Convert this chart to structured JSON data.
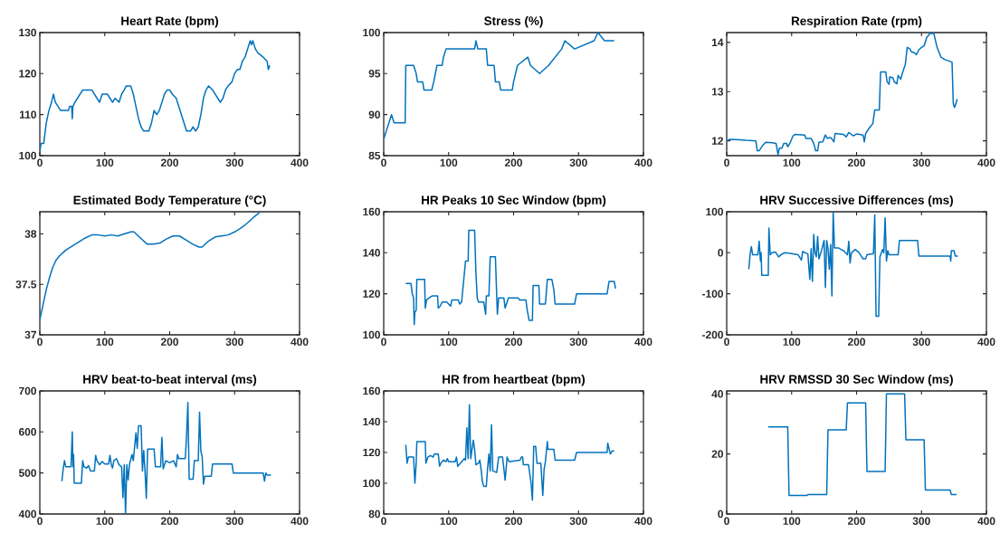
{
  "chart_data": [
    {
      "type": "line",
      "title": "Heart Rate (bpm)",
      "color": "#0072bd",
      "xlim": [
        0,
        400
      ],
      "xticks": [
        0,
        100,
        200,
        300,
        400
      ],
      "ylim": [
        100,
        130
      ],
      "yticks": [
        100,
        110,
        120,
        130
      ],
      "x": [
        0,
        2,
        6,
        10,
        14,
        18,
        21,
        24,
        28,
        32,
        44,
        46,
        49,
        50,
        51,
        54,
        58,
        62,
        66,
        80,
        84,
        88,
        92,
        96,
        104,
        108,
        112,
        116,
        122,
        126,
        130,
        133,
        140,
        144,
        148,
        152,
        156,
        160,
        168,
        172,
        176,
        180,
        184,
        188,
        192,
        196,
        200,
        204,
        210,
        214,
        218,
        222,
        226,
        232,
        236,
        240,
        244,
        248,
        252,
        256,
        260,
        266,
        270,
        274,
        278,
        282,
        286,
        290,
        296,
        300,
        304,
        308,
        312,
        316,
        320,
        324,
        326,
        328,
        332,
        336,
        344,
        350,
        352,
        354
      ],
      "values": [
        101,
        103,
        103,
        108,
        111,
        113,
        115,
        113,
        112,
        111,
        111,
        112,
        112,
        109,
        112,
        113,
        114,
        115,
        116,
        116,
        115,
        114,
        113,
        115,
        115,
        114,
        113,
        114,
        113,
        115,
        116,
        117,
        117,
        115,
        112,
        109,
        107,
        106,
        106,
        108,
        111,
        110,
        111,
        113,
        115,
        116,
        116,
        115,
        114,
        112,
        110,
        108,
        106,
        106,
        107,
        106,
        107,
        110,
        114,
        116,
        117,
        116,
        115,
        114,
        113,
        114,
        116,
        117,
        118,
        120,
        121,
        121,
        123,
        124,
        126,
        128,
        127,
        128,
        126,
        125,
        124,
        123,
        121,
        122
      ]
    },
    {
      "type": "line",
      "title": "Stress (%)",
      "color": "#0072bd",
      "xlim": [
        0,
        400
      ],
      "xticks": [
        0,
        100,
        200,
        300,
        400
      ],
      "ylim": [
        85,
        100
      ],
      "yticks": [
        85,
        90,
        95,
        100
      ],
      "x": [
        0,
        4,
        8,
        12,
        16,
        33,
        34,
        46,
        50,
        52,
        60,
        62,
        74,
        77,
        82,
        90,
        92,
        96,
        140,
        142,
        145,
        158,
        160,
        170,
        172,
        178,
        180,
        198,
        200,
        203,
        206,
        222,
        226,
        240,
        254,
        264,
        274,
        279,
        294,
        324,
        330,
        340,
        355
      ],
      "values": [
        87,
        88,
        89,
        90,
        89,
        89,
        96,
        96,
        95,
        94,
        94,
        93,
        93,
        94,
        96,
        96,
        97,
        98,
        98,
        99,
        98,
        98,
        96,
        96,
        94,
        94,
        93,
        93,
        94,
        95,
        96,
        97,
        96,
        95,
        96,
        97,
        98,
        99,
        98,
        99,
        100,
        99,
        99
      ]
    },
    {
      "type": "line",
      "title": "Respiration Rate (rpm)",
      "color": "#0072bd",
      "xlim": [
        0,
        400
      ],
      "xticks": [
        0,
        100,
        200,
        300,
        400
      ],
      "ylim": [
        11.7,
        14.2
      ],
      "yticks": [
        12,
        13,
        14
      ],
      "x": [
        0,
        5,
        20,
        30,
        45,
        47,
        50,
        55,
        60,
        70,
        76,
        79,
        81,
        85,
        88,
        92,
        94,
        98,
        102,
        105,
        120,
        122,
        130,
        134,
        137,
        140,
        142,
        148,
        152,
        155,
        160,
        163,
        165,
        167,
        180,
        184,
        188,
        195,
        200,
        210,
        212,
        214,
        220,
        225,
        228,
        235,
        237,
        245,
        247,
        250,
        251,
        256,
        258,
        262,
        264,
        268,
        270,
        275,
        278,
        282,
        285,
        288,
        292,
        296,
        300,
        304,
        308,
        313,
        319,
        324,
        330,
        336,
        347,
        349,
        351,
        355
      ],
      "values": [
        12,
        12.03,
        12.02,
        12.01,
        12,
        11.8,
        11.8,
        11.9,
        11.97,
        11.96,
        11.95,
        11.72,
        11.85,
        11.85,
        11.95,
        11.95,
        11.88,
        11.97,
        12.1,
        12.13,
        12.12,
        12.05,
        12.05,
        11.95,
        11.8,
        11.8,
        11.97,
        11.98,
        12.12,
        12.05,
        12.07,
        12.02,
        11.98,
        12.15,
        12.13,
        12.08,
        12.17,
        12.1,
        12.14,
        12.12,
        11.98,
        12.15,
        12.27,
        12.35,
        12.63,
        12.63,
        13.4,
        13.4,
        13.2,
        13.15,
        13.3,
        13.28,
        13.2,
        13.16,
        13.33,
        13.25,
        13.35,
        13.55,
        13.9,
        13.87,
        13.8,
        13.8,
        13.75,
        13.85,
        13.9,
        13.93,
        14.1,
        14.18,
        14.18,
        13.9,
        13.7,
        13.65,
        13.6,
        12.75,
        12.68,
        12.85
      ]
    },
    {
      "type": "line",
      "title": "Estimated Body Temperature (°C)",
      "color": "#0072bd",
      "xlim": [
        0,
        400
      ],
      "xticks": [
        0,
        100,
        200,
        300,
        400
      ],
      "ylim": [
        37,
        38.22
      ],
      "yticks": [
        37,
        37.5,
        38
      ],
      "x": [
        0,
        5,
        10,
        15,
        20,
        25,
        30,
        40,
        50,
        60,
        70,
        80,
        90,
        100,
        110,
        120,
        130,
        140,
        145,
        155,
        165,
        175,
        185,
        195,
        205,
        215,
        225,
        235,
        245,
        250,
        260,
        270,
        280,
        290,
        300,
        310,
        320,
        330,
        338
      ],
      "values": [
        37.15,
        37.3,
        37.45,
        37.57,
        37.67,
        37.74,
        37.78,
        37.84,
        37.88,
        37.92,
        37.96,
        37.99,
        37.99,
        37.98,
        37.99,
        37.98,
        38,
        38.02,
        38.02,
        37.96,
        37.9,
        37.9,
        37.91,
        37.95,
        37.98,
        37.98,
        37.94,
        37.9,
        37.87,
        37.87,
        37.93,
        37.97,
        37.98,
        37.99,
        38.02,
        38.06,
        38.11,
        38.17,
        38.21
      ]
    },
    {
      "type": "line",
      "title": "HR Peaks 10 Sec Window (bpm)",
      "color": "#0072bd",
      "xlim": [
        0,
        400
      ],
      "xticks": [
        0,
        100,
        200,
        300,
        400
      ],
      "ylim": [
        100,
        160
      ],
      "yticks": [
        100,
        120,
        140,
        160
      ],
      "x": [
        34,
        42,
        44,
        46,
        47,
        48,
        50,
        51,
        63,
        64,
        66,
        70,
        75,
        83,
        84,
        87,
        90,
        97,
        100,
        103,
        105,
        115,
        117,
        120,
        126,
        130,
        131,
        140,
        142,
        144,
        146,
        154,
        157,
        158,
        162,
        164,
        172,
        175,
        177,
        185,
        187,
        192,
        207,
        209,
        219,
        221,
        224,
        229,
        230,
        239,
        240,
        249,
        252,
        259,
        262,
        264,
        294,
        297,
        344,
        347,
        355,
        357
      ],
      "values": [
        125,
        125,
        120,
        118,
        105,
        111,
        112,
        127,
        127,
        113,
        117,
        118,
        119,
        119,
        113,
        114,
        116,
        116,
        115,
        114,
        117,
        117,
        115,
        116,
        136,
        136,
        151,
        151,
        130,
        118,
        116,
        116,
        110,
        119,
        119,
        138,
        138,
        110,
        118,
        118,
        113,
        118,
        118,
        117,
        117,
        112,
        107,
        107,
        124,
        124,
        115,
        115,
        127,
        127,
        122,
        115,
        115,
        120,
        120,
        126,
        126,
        122.5
      ]
    },
    {
      "type": "line",
      "title": "HRV Successive Differences (ms)",
      "color": "#0072bd",
      "xlim": [
        0,
        400
      ],
      "xticks": [
        0,
        100,
        200,
        300,
        400
      ],
      "ylim": [
        -200,
        100
      ],
      "yticks": [
        -200,
        -100,
        0,
        100
      ],
      "x": [
        34,
        36,
        38,
        40,
        48,
        50,
        52,
        53,
        54,
        64,
        65,
        67,
        70,
        75,
        80,
        85,
        90,
        100,
        110,
        115,
        117,
        125,
        128,
        130,
        132,
        134,
        136,
        138,
        140,
        142,
        146,
        150,
        152,
        154,
        156,
        158,
        160,
        162,
        164,
        166,
        172,
        176,
        180,
        186,
        188,
        190,
        192,
        198,
        204,
        210,
        214,
        216,
        226,
        228,
        230,
        234,
        236,
        240,
        242,
        244,
        246,
        248,
        250,
        264,
        266,
        294,
        296,
        344,
        345,
        346,
        350,
        352,
        356
      ],
      "values": [
        -40,
        -5,
        15,
        -5,
        -5,
        28,
        -20,
        0,
        -55,
        -55,
        60,
        -5,
        0,
        2,
        -10,
        -3,
        0,
        -2,
        -5,
        -18,
        3,
        -3,
        -65,
        10,
        -70,
        45,
        0,
        -10,
        40,
        -15,
        5,
        30,
        -85,
        30,
        10,
        -40,
        20,
        -105,
        100,
        12,
        12,
        8,
        5,
        -5,
        28,
        -25,
        0,
        8,
        0,
        -15,
        -15,
        -5,
        -2,
        92,
        -155,
        -155,
        -10,
        8,
        0,
        85,
        -20,
        5,
        -5,
        -5,
        30,
        30,
        -8,
        -8,
        -20,
        5,
        5,
        -8,
        -8
      ]
    },
    {
      "type": "line",
      "title": "HRV beat-to-beat interval (ms)",
      "color": "#0072bd",
      "xlim": [
        0,
        400
      ],
      "xticks": [
        0,
        100,
        200,
        300,
        400
      ],
      "ylim": [
        400,
        700
      ],
      "yticks": [
        400,
        500,
        600,
        700
      ],
      "x": [
        34,
        36,
        38,
        40,
        48,
        50,
        51,
        52,
        53,
        64,
        66,
        68,
        72,
        75,
        78,
        84,
        86,
        88,
        92,
        96,
        100,
        106,
        108,
        110,
        112,
        114,
        118,
        122,
        126,
        128,
        130,
        132,
        134,
        136,
        138,
        142,
        144,
        148,
        150,
        152,
        156,
        158,
        160,
        162,
        164,
        166,
        176,
        178,
        186,
        188,
        190,
        194,
        200,
        206,
        210,
        212,
        214,
        224,
        226,
        228,
        230,
        236,
        238,
        244,
        246,
        248,
        250,
        252,
        254,
        264,
        266,
        296,
        298,
        344,
        346,
        348,
        350,
        356
      ],
      "values": [
        480,
        510,
        530,
        515,
        515,
        600,
        515,
        545,
        475,
        475,
        530,
        515,
        512,
        518,
        505,
        505,
        543,
        530,
        520,
        528,
        522,
        522,
        543,
        520,
        512,
        530,
        535,
        520,
        515,
        440,
        520,
        400,
        520,
        483,
        520,
        545,
        530,
        598,
        560,
        615,
        615,
        505,
        555,
        505,
        438,
        558,
        558,
        515,
        515,
        587,
        510,
        530,
        525,
        530,
        515,
        545,
        535,
        535,
        590,
        672,
        485,
        485,
        530,
        530,
        648,
        553,
        540,
        473,
        492,
        492,
        522,
        522,
        500,
        500,
        480,
        500,
        495,
        495
      ]
    },
    {
      "type": "line",
      "title": "HR from heartbeat (bpm)",
      "color": "#0072bd",
      "xlim": [
        0,
        400
      ],
      "xticks": [
        0,
        100,
        200,
        300,
        400
      ],
      "ylim": [
        80,
        160
      ],
      "yticks": [
        80,
        100,
        120,
        140,
        160
      ],
      "x": [
        34,
        36,
        38,
        46,
        48,
        50,
        51,
        64,
        65,
        68,
        72,
        76,
        78,
        84,
        86,
        88,
        92,
        96,
        98,
        100,
        110,
        112,
        114,
        120,
        124,
        126,
        128,
        130,
        132,
        134,
        138,
        140,
        142,
        146,
        148,
        150,
        152,
        154,
        158,
        160,
        162,
        164,
        166,
        168,
        174,
        177,
        183,
        187,
        190,
        193,
        210,
        212,
        214,
        215,
        223,
        227,
        229,
        231,
        234,
        236,
        242,
        245,
        247,
        249,
        252,
        253,
        262,
        264,
        294,
        297,
        344,
        345,
        349,
        352,
        355
      ],
      "values": [
        125,
        113,
        117,
        117,
        100,
        113,
        127,
        127,
        113,
        117,
        118,
        117,
        119,
        119,
        111,
        113,
        115,
        114,
        116,
        114,
        114,
        117,
        111,
        114,
        116,
        115,
        136,
        116,
        151,
        116,
        128,
        122,
        112,
        113,
        115,
        109,
        101,
        98,
        98,
        110,
        119,
        108,
        138,
        108,
        107,
        117,
        117,
        102,
        117,
        114,
        115,
        117,
        117,
        112,
        112,
        100,
        89,
        124,
        124,
        113,
        113,
        92,
        109,
        114,
        127,
        122,
        122,
        115,
        115,
        120,
        120,
        126,
        119,
        121,
        121
      ]
    },
    {
      "type": "line",
      "title": "HRV RMSSD 30 Sec Window (ms)",
      "color": "#0072bd",
      "xlim": [
        0,
        400
      ],
      "xticks": [
        0,
        100,
        200,
        300,
        400
      ],
      "ylim": [
        0,
        41
      ],
      "yticks": [
        0,
        20,
        40
      ],
      "x": [
        64,
        94,
        96,
        124,
        125,
        154,
        156,
        184,
        186,
        214,
        216,
        244,
        246,
        274,
        276,
        304,
        306,
        344,
        346,
        354
      ],
      "values": [
        29,
        29,
        6.2,
        6.2,
        6.5,
        6.5,
        28,
        28,
        37,
        37,
        14.2,
        14.2,
        40,
        40,
        24.7,
        24.7,
        8,
        8,
        6.5,
        6.5
      ]
    }
  ]
}
